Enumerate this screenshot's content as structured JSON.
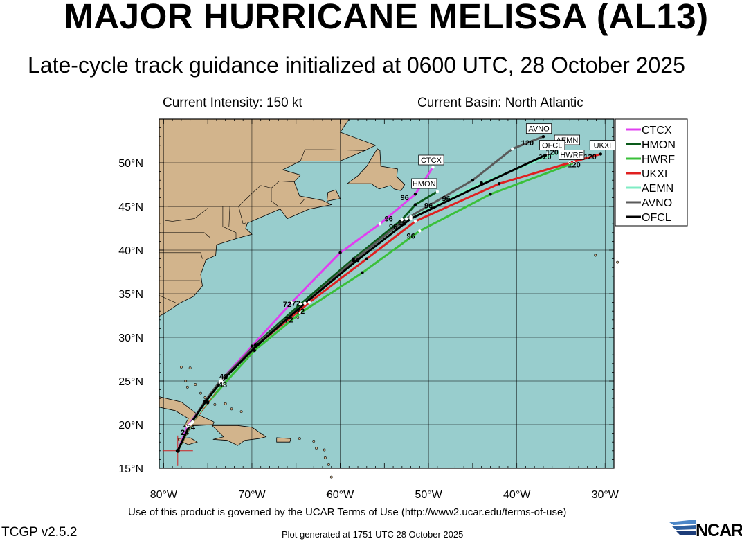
{
  "header": {
    "title": "MAJOR HURRICANE MELISSA (AL13)",
    "subtitle": "Late-cycle track guidance initialized at 0600 UTC, 28 October 2025",
    "intensity": "Current Intensity: 150 kt",
    "basin": "Current Basin: North Atlantic"
  },
  "footer": {
    "terms": "Use of this product is governed by the UCAR Terms of Use (http://www2.ucar.edu/terms-of-use)",
    "version": "TCGP v2.5.2",
    "generated": "Plot generated at 1751 UTC   28 October 2025",
    "logo": "NCAR"
  },
  "map": {
    "lon_range": [
      -80.5,
      -29
    ],
    "lat_range": [
      15,
      55
    ],
    "lat_ticks": [
      "15°N",
      "20°N",
      "25°N",
      "30°N",
      "35°N",
      "40°N",
      "45°N",
      "50°N"
    ],
    "lon_ticks": [
      "80°W",
      "70°W",
      "60°W",
      "50°W",
      "40°W",
      "30°W"
    ],
    "ocean_color": "#98cdcd",
    "land_color": "#d2b48c",
    "grid": true,
    "legend_placement": "right"
  },
  "chart_data": {
    "type": "track-map",
    "storm_origin": [
      -78.4,
      17.0
    ],
    "series": [
      {
        "name": "CTCX",
        "color": "#e040f0",
        "end_label": "CTCX",
        "points": [
          [
            -78.4,
            17.0
          ],
          [
            -77.3,
            19.8
          ],
          [
            -75.2,
            22.7
          ],
          [
            -73.4,
            25.2
          ],
          [
            -70.0,
            29.0
          ],
          [
            -65.5,
            34.0
          ],
          [
            -60.0,
            39.7
          ],
          [
            -55.5,
            43.0
          ],
          [
            -51.5,
            46.4
          ],
          [
            -49.5,
            49.5
          ]
        ]
      },
      {
        "name": "HMON",
        "color": "#0a5a1a",
        "end_label": "HMON",
        "points": [
          [
            -78.4,
            17.0
          ],
          [
            -77.0,
            20.0
          ],
          [
            -75.3,
            22.7
          ],
          [
            -73.6,
            24.8
          ],
          [
            -69.6,
            29.2
          ],
          [
            -64.5,
            33.8
          ],
          [
            -58.5,
            39.0
          ],
          [
            -53.0,
            43.5
          ],
          [
            -51.5,
            45.2
          ],
          [
            -49.0,
            46.7
          ]
        ]
      },
      {
        "name": "HWRF",
        "color": "#3ac03a",
        "end_label": "HWRF",
        "points": [
          [
            -78.4,
            17.0
          ],
          [
            -76.7,
            20.3
          ],
          [
            -75.0,
            22.5
          ],
          [
            -73.2,
            24.6
          ],
          [
            -69.7,
            28.5
          ],
          [
            -64.5,
            32.8
          ],
          [
            -57.5,
            37.4
          ],
          [
            -51.0,
            42.2
          ],
          [
            -43.0,
            46.4
          ],
          [
            -33.5,
            50.0
          ]
        ]
      },
      {
        "name": "UKXI",
        "color": "#e02020",
        "end_label": "UKXI",
        "points": [
          [
            -78.4,
            17.0
          ],
          [
            -76.8,
            20.2
          ],
          [
            -75.0,
            22.6
          ],
          [
            -73.4,
            24.9
          ],
          [
            -69.3,
            29.2
          ],
          [
            -63.5,
            34.0
          ],
          [
            -57.0,
            39.0
          ],
          [
            -51.5,
            43.3
          ],
          [
            -42.0,
            47.6
          ],
          [
            -34.0,
            50.0
          ],
          [
            -30.5,
            51.0
          ]
        ]
      },
      {
        "name": "AEMN",
        "color": "#80ecc4",
        "end_label": "AEMN",
        "points": [
          [
            -78.4,
            17.0
          ],
          [
            -76.9,
            20.1
          ],
          [
            -75.1,
            22.6
          ],
          [
            -73.4,
            24.9
          ],
          [
            -69.5,
            29.0
          ],
          [
            -64.0,
            33.9
          ],
          [
            -58.0,
            38.8
          ],
          [
            -52.0,
            43.8
          ],
          [
            -44.0,
            47.7
          ],
          [
            -35.0,
            51.3
          ]
        ]
      },
      {
        "name": "AVNO",
        "color": "#5a5a5a",
        "end_label": "AVNO",
        "points": [
          [
            -78.4,
            17.0
          ],
          [
            -77.1,
            19.9
          ],
          [
            -75.3,
            22.7
          ],
          [
            -73.6,
            25.0
          ],
          [
            -69.6,
            29.1
          ],
          [
            -64.0,
            33.9
          ],
          [
            -58.5,
            38.8
          ],
          [
            -52.5,
            43.6
          ],
          [
            -45.0,
            48.0
          ],
          [
            -40.5,
            51.6
          ],
          [
            -37.0,
            53.0
          ]
        ]
      },
      {
        "name": "OFCL",
        "color": "#000000",
        "end_label": "OFCL",
        "points": [
          [
            -78.4,
            17.0
          ],
          [
            -77.0,
            20.0
          ],
          [
            -75.2,
            22.7
          ],
          [
            -73.5,
            24.9
          ],
          [
            -69.5,
            29.0
          ],
          [
            -64.0,
            33.9
          ],
          [
            -58.0,
            38.9
          ],
          [
            -52.0,
            43.6
          ],
          [
            -45.0,
            47.0
          ],
          [
            -36.5,
            51.0
          ]
        ]
      }
    ],
    "hour_labels": [
      {
        "text": "24",
        "lon": -77.6,
        "lat": 18.8
      },
      {
        "text": "24",
        "lon": -76.9,
        "lat": 19.4
      },
      {
        "text": "48",
        "lon": -73.2,
        "lat": 25.2
      },
      {
        "text": "48",
        "lon": -73.3,
        "lat": 24.3
      },
      {
        "text": "72",
        "lon": -66.0,
        "lat": 33.5
      },
      {
        "text": "72",
        "lon": -65.0,
        "lat": 33.6
      },
      {
        "text": "72",
        "lon": -64.5,
        "lat": 32.7
      },
      {
        "text": "72",
        "lon": -65.8,
        "lat": 31.7
      },
      {
        "text": "96",
        "lon": -52.7,
        "lat": 45.7
      },
      {
        "text": "96",
        "lon": -50.0,
        "lat": 44.8
      },
      {
        "text": "96",
        "lon": -48.0,
        "lat": 45.6
      },
      {
        "text": "96",
        "lon": -54.5,
        "lat": 43.3
      },
      {
        "text": "96",
        "lon": -53.0,
        "lat": 42.8
      },
      {
        "text": "96",
        "lon": -54.0,
        "lat": 42.4
      },
      {
        "text": "96",
        "lon": -52.0,
        "lat": 41.3
      },
      {
        "text": "120",
        "lon": -38.8,
        "lat": 52.0
      },
      {
        "text": "120",
        "lon": -36.8,
        "lat": 50.4
      },
      {
        "text": "120",
        "lon": -36.0,
        "lat": 50.9
      },
      {
        "text": "120",
        "lon": -33.5,
        "lat": 49.5
      },
      {
        "text": "120",
        "lon": -31.7,
        "lat": 50.4
      }
    ],
    "end_tags": [
      {
        "text": "CTCX",
        "lon": -49.7,
        "lat": 50.0
      },
      {
        "text": "HMON",
        "lon": -50.5,
        "lat": 47.3
      },
      {
        "text": "AVNO",
        "lon": -37.5,
        "lat": 53.6
      },
      {
        "text": "AEMN",
        "lon": -34.3,
        "lat": 52.3
      },
      {
        "text": "OFCL",
        "lon": -36.0,
        "lat": 51.7
      },
      {
        "text": "HWRF",
        "lon": -33.8,
        "lat": 50.6
      },
      {
        "text": "UKXI",
        "lon": -30.3,
        "lat": 51.7
      }
    ]
  }
}
